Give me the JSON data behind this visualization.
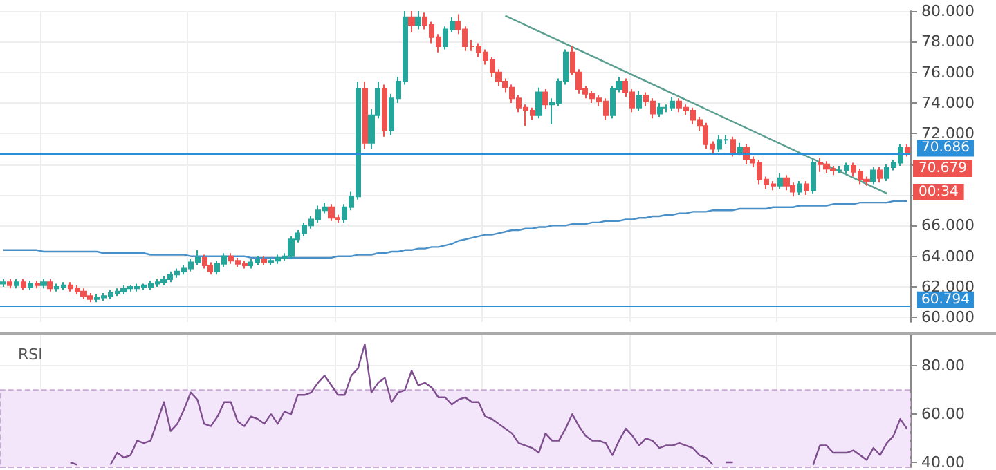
{
  "chart_data": [
    {
      "type": "candlestick",
      "categories": [
        null,
        null,
        null,
        null,
        null,
        null,
        null,
        null,
        null,
        null,
        null,
        null,
        null,
        null,
        null,
        null,
        null,
        null,
        null,
        null,
        null,
        null,
        null,
        null,
        null,
        null,
        null,
        null,
        null,
        null,
        null,
        null,
        null,
        null,
        null,
        null,
        null,
        null,
        null,
        null,
        null,
        null,
        null,
        null,
        null,
        null,
        null,
        null,
        null,
        null,
        null,
        null,
        null,
        null,
        null,
        null,
        null,
        null,
        null,
        null,
        null,
        null,
        null,
        null,
        null,
        null,
        null,
        null,
        null,
        null,
        null,
        null,
        null,
        null,
        null,
        null,
        null,
        null,
        null,
        null,
        null,
        null,
        null,
        null,
        null,
        null,
        null,
        null,
        null,
        null,
        null,
        null,
        null,
        null,
        null,
        null,
        null,
        null,
        null,
        null,
        null,
        null,
        null,
        null,
        null,
        null,
        null,
        null,
        null,
        null,
        null,
        null,
        null,
        null,
        null,
        null,
        null,
        null,
        null,
        null,
        null,
        null,
        null,
        null,
        null,
        null,
        null,
        null,
        null,
        null,
        null,
        null,
        null,
        null,
        null,
        null
      ],
      "colors": [
        "#26a69a",
        "#ef5350",
        "#26a69a",
        "#ef5350",
        "#26a69a",
        "#ef5350",
        "#26a69a",
        "#ef5350",
        "#26a69a",
        "#26a69a",
        "#ef5350",
        "#ef5350",
        "#ef5350",
        "#ef5350",
        "#26a69a",
        "#26a69a",
        "#26a69a",
        "#26a69a",
        "#26a69a",
        "#26a69a",
        "#26a69a",
        "#26a69a",
        "#26a69a",
        "#26a69a",
        "#26a69a",
        "#26a69a",
        "#26a69a",
        "#26a69a",
        "#26a69a",
        "#26a69a",
        "#ef5350",
        "#ef5350",
        "#26a69a",
        "#26a69a",
        "#ef5350",
        "#ef5350",
        "#ef5350",
        "#26a69a",
        "#26a69a",
        "#ef5350",
        "#26a69a",
        "#26a69a",
        "#26a69a",
        "#26a69a",
        "#26a69a",
        "#26a69a",
        "#26a69a",
        "#26a69a",
        "#26a69a",
        "#ef5350",
        "#ef5350",
        "#26a69a",
        "#26a69a",
        "#26a69a",
        "#ef5350",
        "#26a69a",
        "#26a69a",
        "#ef5350",
        "#26a69a",
        "#26a69a",
        "#26a69a",
        "#ef5350",
        "#26a69a",
        "#ef5350",
        "#ef5350",
        "#ef5350",
        "#26a69a",
        "#26a69a",
        "#ef5350",
        "#ef5350",
        "#ef5350",
        "#ef5350",
        "#ef5350",
        "#ef5350",
        "#ef5350",
        "#ef5350",
        "#ef5350",
        "#ef5350",
        "#ef5350",
        "#ef5350",
        "#26a69a",
        "#ef5350",
        "#26a69a",
        "#26a69a",
        "#26a69a",
        "#ef5350",
        "#ef5350",
        "#ef5350",
        "#ef5350",
        "#ef5350",
        "#ef5350",
        "#26a69a",
        "#26a69a",
        "#ef5350",
        "#ef5350",
        "#26a69a",
        "#ef5350",
        "#ef5350",
        "#26a69a",
        "#26a69a",
        "#26a69a",
        "#ef5350",
        "#ef5350",
        "#ef5350",
        "#ef5350",
        "#ef5350",
        "#ef5350",
        "#26a69a",
        "#26a69a",
        "#ef5350",
        "#26a69a",
        "#ef5350",
        "#ef5350",
        "#ef5350",
        "#ef5350",
        "#ef5350",
        "#26a69a",
        "#ef5350",
        "#ef5350",
        "#26a69a",
        "#ef5350",
        "#26a69a",
        "#ef5350",
        "#ef5350",
        "#ef5350",
        "#26a69a",
        "#26a69a",
        "#ef5350",
        "#ef5350",
        "#ef5350",
        "#26a69a",
        "#ef5350",
        "#26a69a",
        "#26a69a",
        "#26a69a",
        "#ef5350"
      ],
      "ohlc": [
        [
          62.2,
          62.5,
          62.0,
          62.3
        ],
        [
          62.3,
          62.5,
          61.9,
          62.1
        ],
        [
          62.1,
          62.5,
          61.9,
          62.3
        ],
        [
          62.3,
          62.5,
          61.8,
          62.0
        ],
        [
          62.0,
          62.4,
          61.8,
          62.2
        ],
        [
          62.2,
          62.4,
          61.9,
          62.1
        ],
        [
          62.1,
          62.5,
          61.9,
          62.3
        ],
        [
          62.3,
          62.5,
          61.7,
          61.9
        ],
        [
          61.9,
          62.2,
          61.7,
          62.0
        ],
        [
          62.0,
          62.3,
          61.8,
          62.1
        ],
        [
          62.1,
          62.3,
          61.7,
          61.9
        ],
        [
          61.9,
          62.1,
          61.5,
          61.7
        ],
        [
          61.7,
          61.9,
          61.2,
          61.4
        ],
        [
          61.4,
          61.6,
          61.0,
          61.2
        ],
        [
          61.2,
          61.5,
          61.0,
          61.3
        ],
        [
          61.3,
          61.6,
          61.1,
          61.4
        ],
        [
          61.4,
          61.8,
          61.2,
          61.6
        ],
        [
          61.6,
          61.9,
          61.4,
          61.7
        ],
        [
          61.7,
          62.1,
          61.5,
          61.9
        ],
        [
          61.9,
          62.1,
          61.7,
          62.0
        ],
        [
          61.9,
          62.2,
          61.7,
          62.0
        ],
        [
          62.0,
          62.2,
          61.8,
          62.1
        ],
        [
          62.0,
          62.4,
          61.8,
          62.2
        ],
        [
          62.2,
          62.5,
          62.0,
          62.3
        ],
        [
          62.3,
          62.7,
          62.1,
          62.5
        ],
        [
          62.5,
          63.0,
          62.3,
          62.8
        ],
        [
          62.8,
          63.2,
          62.6,
          63.0
        ],
        [
          63.0,
          63.4,
          62.8,
          63.2
        ],
        [
          63.2,
          63.8,
          63.0,
          63.6
        ],
        [
          63.6,
          64.4,
          63.4,
          63.9
        ],
        [
          63.9,
          64.1,
          63.2,
          63.4
        ],
        [
          63.4,
          63.6,
          62.8,
          63.0
        ],
        [
          63.0,
          63.7,
          62.8,
          63.5
        ],
        [
          63.5,
          64.2,
          63.3,
          64.0
        ],
        [
          64.0,
          64.2,
          63.5,
          63.7
        ],
        [
          63.7,
          63.9,
          63.3,
          63.5
        ],
        [
          63.5,
          63.7,
          63.2,
          63.4
        ],
        [
          63.4,
          63.8,
          63.2,
          63.6
        ],
        [
          63.6,
          64.0,
          63.4,
          63.8
        ],
        [
          63.8,
          64.0,
          63.4,
          63.6
        ],
        [
          63.6,
          63.9,
          63.4,
          63.7
        ],
        [
          63.7,
          64.1,
          63.5,
          63.9
        ],
        [
          63.9,
          64.2,
          63.7,
          64.0
        ],
        [
          64.0,
          65.3,
          63.8,
          65.1
        ],
        [
          65.1,
          65.7,
          64.9,
          65.5
        ],
        [
          65.5,
          66.2,
          65.3,
          66.0
        ],
        [
          66.0,
          66.6,
          65.8,
          66.4
        ],
        [
          66.4,
          67.3,
          66.2,
          67.0
        ],
        [
          67.0,
          67.5,
          66.8,
          67.2
        ],
        [
          67.2,
          67.4,
          66.3,
          66.5
        ],
        [
          66.5,
          66.7,
          66.2,
          66.4
        ],
        [
          66.4,
          67.4,
          66.2,
          67.2
        ],
        [
          67.2,
          68.2,
          67.0,
          67.9
        ],
        [
          67.9,
          75.4,
          67.7,
          74.9
        ],
        [
          74.9,
          75.4,
          71.0,
          71.4
        ],
        [
          71.4,
          73.6,
          71.0,
          73.2
        ],
        [
          73.2,
          75.4,
          73.0,
          74.9
        ],
        [
          74.9,
          75.2,
          71.8,
          72.2
        ],
        [
          72.2,
          74.6,
          71.9,
          74.3
        ],
        [
          74.3,
          75.7,
          74.0,
          75.4
        ],
        [
          75.4,
          80.0,
          75.2,
          79.6
        ],
        [
          79.6,
          80.0,
          78.6,
          79.1
        ],
        [
          79.1,
          80.0,
          78.8,
          79.6
        ],
        [
          79.6,
          79.9,
          78.8,
          79.1
        ],
        [
          79.1,
          79.3,
          77.9,
          78.3
        ],
        [
          78.3,
          78.5,
          77.3,
          77.7
        ],
        [
          77.7,
          79.0,
          77.5,
          78.8
        ],
        [
          78.8,
          79.6,
          78.6,
          79.3
        ],
        [
          79.3,
          79.8,
          78.5,
          78.8
        ],
        [
          78.8,
          79.0,
          77.4,
          77.7
        ],
        [
          77.7,
          78.1,
          77.4,
          77.7
        ],
        [
          77.7,
          77.9,
          77.0,
          77.3
        ],
        [
          77.3,
          77.5,
          76.5,
          76.8
        ],
        [
          76.8,
          77.0,
          75.7,
          76.0
        ],
        [
          76.0,
          76.2,
          75.1,
          75.4
        ],
        [
          75.4,
          75.6,
          74.7,
          75.0
        ],
        [
          75.0,
          75.2,
          74.0,
          74.3
        ],
        [
          74.3,
          74.5,
          73.4,
          73.7
        ],
        [
          73.7,
          73.9,
          72.5,
          73.5
        ],
        [
          73.5,
          73.7,
          72.9,
          73.2
        ],
        [
          73.2,
          75.0,
          73.0,
          74.7
        ],
        [
          74.7,
          74.9,
          73.6,
          73.9
        ],
        [
          73.9,
          74.3,
          72.6,
          74.0
        ],
        [
          74.0,
          75.6,
          73.8,
          75.4
        ],
        [
          75.4,
          77.5,
          75.2,
          77.3
        ],
        [
          77.3,
          77.7,
          75.8,
          76.0
        ],
        [
          76.0,
          76.2,
          74.6,
          74.9
        ],
        [
          74.9,
          75.1,
          74.3,
          74.6
        ],
        [
          74.6,
          74.8,
          74.0,
          74.3
        ],
        [
          74.3,
          74.5,
          73.8,
          74.1
        ],
        [
          74.1,
          74.3,
          72.9,
          73.2
        ],
        [
          73.2,
          75.1,
          73.0,
          74.9
        ],
        [
          74.9,
          75.7,
          74.7,
          75.4
        ],
        [
          75.4,
          75.6,
          74.4,
          74.7
        ],
        [
          74.7,
          74.9,
          73.4,
          73.7
        ],
        [
          73.7,
          74.8,
          73.5,
          74.5
        ],
        [
          74.5,
          74.7,
          73.8,
          74.1
        ],
        [
          74.1,
          74.3,
          73.0,
          73.3
        ],
        [
          73.3,
          74.0,
          73.1,
          73.7
        ],
        [
          73.7,
          73.9,
          73.4,
          73.7
        ],
        [
          73.7,
          74.4,
          73.5,
          74.1
        ],
        [
          74.1,
          74.3,
          73.4,
          73.7
        ],
        [
          73.7,
          73.9,
          73.2,
          73.5
        ],
        [
          73.5,
          73.7,
          72.6,
          72.9
        ],
        [
          72.9,
          73.1,
          72.2,
          72.5
        ],
        [
          72.5,
          72.7,
          71.0,
          71.3
        ],
        [
          71.3,
          71.5,
          70.7,
          71.0
        ],
        [
          71.0,
          71.9,
          70.8,
          71.6
        ],
        [
          71.6,
          71.9,
          71.3,
          71.6
        ],
        [
          71.6,
          71.8,
          70.5,
          70.8
        ],
        [
          70.8,
          71.4,
          70.6,
          71.1
        ],
        [
          71.1,
          71.3,
          70.0,
          70.3
        ],
        [
          70.3,
          70.5,
          69.8,
          70.1
        ],
        [
          70.1,
          70.3,
          68.7,
          69.0
        ],
        [
          69.0,
          69.2,
          68.4,
          68.7
        ],
        [
          68.7,
          68.9,
          68.3,
          68.6
        ],
        [
          68.6,
          69.4,
          68.4,
          69.1
        ],
        [
          69.1,
          69.3,
          68.3,
          68.6
        ],
        [
          68.6,
          68.8,
          67.9,
          68.2
        ],
        [
          68.2,
          68.9,
          68.0,
          68.7
        ],
        [
          68.7,
          68.9,
          68.0,
          68.3
        ],
        [
          68.3,
          70.3,
          68.1,
          70.1
        ],
        [
          70.1,
          70.4,
          69.5,
          70.0
        ],
        [
          70.0,
          70.2,
          69.4,
          69.7
        ],
        [
          69.7,
          69.9,
          69.3,
          69.6
        ],
        [
          69.6,
          69.9,
          69.4,
          69.6
        ],
        [
          69.6,
          70.1,
          69.4,
          69.9
        ],
        [
          69.9,
          70.1,
          69.2,
          69.5
        ],
        [
          69.5,
          69.7,
          68.7,
          69.0
        ],
        [
          69.0,
          69.2,
          68.6,
          68.9
        ],
        [
          68.9,
          69.8,
          68.7,
          69.6
        ],
        [
          69.6,
          69.8,
          68.8,
          69.1
        ],
        [
          69.1,
          70.0,
          68.9,
          69.8
        ],
        [
          69.8,
          70.3,
          69.6,
          70.1
        ],
        [
          70.1,
          71.3,
          69.9,
          71.1
        ],
        [
          71.1,
          71.3,
          70.5,
          70.68
        ]
      ],
      "series": [
        {
          "type": "line",
          "color": "#4a90c8",
          "values": [
            64.4,
            64.4,
            64.4,
            64.4,
            64.4,
            64.4,
            64.3,
            64.3,
            64.3,
            64.3,
            64.3,
            64.3,
            64.3,
            64.3,
            64.3,
            64.2,
            64.2,
            64.2,
            64.2,
            64.2,
            64.2,
            64.2,
            64.1,
            64.1,
            64.1,
            64.1,
            64.1,
            64.1,
            64.0,
            64.0,
            64.0,
            64.0,
            64.0,
            64.0,
            64.0,
            64.0,
            64.0,
            63.9,
            63.9,
            63.9,
            63.9,
            63.9,
            63.9,
            63.9,
            63.9,
            63.9,
            63.9,
            63.9,
            63.9,
            63.9,
            64.0,
            64.0,
            64.0,
            64.1,
            64.1,
            64.1,
            64.2,
            64.2,
            64.3,
            64.3,
            64.4,
            64.4,
            64.5,
            64.5,
            64.6,
            64.6,
            64.7,
            64.8,
            65.0,
            65.1,
            65.2,
            65.3,
            65.4,
            65.4,
            65.5,
            65.6,
            65.7,
            65.7,
            65.8,
            65.8,
            65.9,
            65.9,
            66.0,
            66.0,
            66.0,
            66.1,
            66.1,
            66.1,
            66.2,
            66.2,
            66.3,
            66.3,
            66.3,
            66.4,
            66.4,
            66.5,
            66.5,
            66.6,
            66.6,
            66.7,
            66.7,
            66.8,
            66.8,
            66.9,
            66.9,
            66.9,
            67.0,
            67.0,
            67.0,
            67.0,
            67.1,
            67.1,
            67.1,
            67.1,
            67.1,
            67.2,
            67.2,
            67.2,
            67.2,
            67.3,
            67.3,
            67.3,
            67.3,
            67.3,
            67.4,
            67.4,
            67.4,
            67.4,
            67.5,
            67.5,
            67.5,
            67.5,
            67.5,
            67.6,
            67.6,
            67.6
          ]
        },
        {
          "type": "line",
          "color": "#5a9e8f",
          "values": [
            null,
            null,
            null,
            null,
            null,
            null,
            null,
            null,
            null,
            null,
            null,
            null,
            null,
            null,
            null,
            null,
            null,
            null,
            null,
            null,
            null,
            null,
            null,
            null,
            null,
            null,
            null,
            null,
            null,
            null,
            null,
            null,
            null,
            null,
            null,
            null,
            null,
            null,
            null,
            null,
            null,
            null,
            null,
            null,
            null,
            null,
            null,
            null,
            null,
            null,
            null,
            null,
            null,
            null,
            null,
            null,
            null,
            null,
            null,
            null,
            null,
            null,
            null,
            null,
            null,
            null,
            null,
            null,
            null,
            null,
            null,
            null,
            null,
            null,
            null,
            79.7,
            null,
            null,
            null,
            null,
            null,
            null,
            null,
            null,
            null,
            null,
            null,
            null,
            null,
            null,
            null,
            null,
            null,
            null,
            null,
            null,
            null,
            null,
            null,
            null,
            null,
            null,
            null,
            null,
            null,
            null,
            null,
            null,
            null,
            null,
            null,
            null,
            null,
            null,
            null,
            null,
            null,
            null,
            null,
            null,
            null,
            null,
            null,
            null,
            null,
            null,
            null,
            null,
            null,
            null,
            null,
            null,
            68.1,
            null,
            null,
            null
          ]
        }
      ],
      "ref_lines": [
        {
          "axis": "y",
          "value": 70.686,
          "label": "70.686",
          "color": "#2a8fd8"
        },
        {
          "axis": "y",
          "value": 60.794,
          "label": "60.794",
          "color": "#2a8fd8"
        }
      ],
      "annotations": [
        "70.679",
        "00:34"
      ],
      "ylim": [
        59.7,
        80
      ],
      "yticks": [
        {
          "value": 60,
          "label": "60.000"
        },
        {
          "value": 62,
          "label": "62.000"
        },
        {
          "value": 64,
          "label": "64.000"
        },
        {
          "value": 66,
          "label": "66.000"
        },
        {
          "value": 68,
          "label": null
        },
        {
          "value": 70,
          "label": null
        },
        {
          "value": 72,
          "label": "72.000"
        },
        {
          "value": 74,
          "label": "74.000"
        },
        {
          "value": 76,
          "label": "76.000"
        },
        {
          "value": 78,
          "label": "78.000"
        },
        {
          "value": 80,
          "label": "80.000"
        }
      ],
      "grid": true,
      "tick_labels": "y"
    },
    {
      "type": "line",
      "title": "RSI",
      "categories": [
        null,
        null,
        null,
        null,
        null,
        null,
        null,
        null,
        null,
        null,
        null,
        null,
        null,
        null,
        null,
        null,
        null,
        null,
        null,
        null,
        null,
        null,
        null,
        null,
        null,
        null,
        null,
        null,
        null,
        null,
        null,
        null,
        null,
        null,
        null,
        null,
        null,
        null,
        null,
        null,
        null,
        null,
        null,
        null,
        null,
        null,
        null,
        null,
        null,
        null,
        null,
        null,
        null,
        null,
        null,
        null,
        null,
        null,
        null,
        null,
        null,
        null,
        null,
        null,
        null,
        null,
        null,
        null,
        null,
        null,
        null,
        null,
        null,
        null,
        null,
        null,
        null,
        null,
        null,
        null,
        null,
        null,
        null,
        null,
        null,
        null,
        null,
        null,
        null,
        null,
        null,
        null,
        null,
        null,
        null,
        null,
        null,
        null,
        null,
        null,
        null,
        null,
        null,
        null,
        null,
        null,
        null,
        null,
        null,
        null,
        null,
        null,
        null,
        null,
        null,
        null,
        null,
        null,
        null,
        null,
        null,
        null,
        null,
        null,
        null,
        null,
        null,
        null,
        null,
        null,
        null,
        null,
        null,
        null,
        null,
        null
      ],
      "color": "#7e4e8e",
      "marker": "none",
      "values": [
        null,
        null,
        null,
        null,
        null,
        null,
        null,
        null,
        null,
        null,
        40,
        39,
        null,
        null,
        null,
        null,
        39,
        44,
        42,
        43,
        49,
        48,
        49,
        57,
        65,
        53,
        56,
        62,
        69,
        66,
        56,
        55,
        59,
        65,
        65,
        57,
        55,
        59,
        58,
        56,
        60,
        56,
        61,
        60,
        68,
        68,
        69,
        73,
        76,
        72,
        68,
        68,
        76,
        79,
        89,
        69,
        73,
        75,
        65,
        69,
        70,
        78,
        72,
        73,
        71,
        67,
        67,
        64,
        66,
        67,
        65,
        65,
        59,
        58,
        56,
        54,
        52,
        48,
        47,
        46,
        44,
        52,
        49,
        49,
        54,
        60,
        55,
        51,
        49,
        49,
        48,
        43,
        49,
        54,
        51,
        47,
        50,
        49,
        46,
        47,
        47,
        48,
        47,
        46,
        43,
        42,
        39,
        null,
        40,
        40,
        null,
        null,
        null,
        null,
        null,
        null,
        null,
        null,
        null,
        null,
        null,
        39,
        47,
        47,
        44,
        44,
        44,
        45,
        43,
        41,
        46,
        43,
        48,
        51,
        58,
        54
      ],
      "bands": [
        {
          "axis": "y",
          "from": 30,
          "to": 70,
          "color": "#f3e6fb"
        }
      ],
      "ylim": [
        38,
        93
      ],
      "yticks": [
        {
          "value": 40,
          "label": "40.00"
        },
        {
          "value": 60,
          "label": "60.00"
        },
        {
          "value": 80,
          "label": "80.00"
        }
      ],
      "grid": true,
      "tick_labels": "y"
    }
  ]
}
